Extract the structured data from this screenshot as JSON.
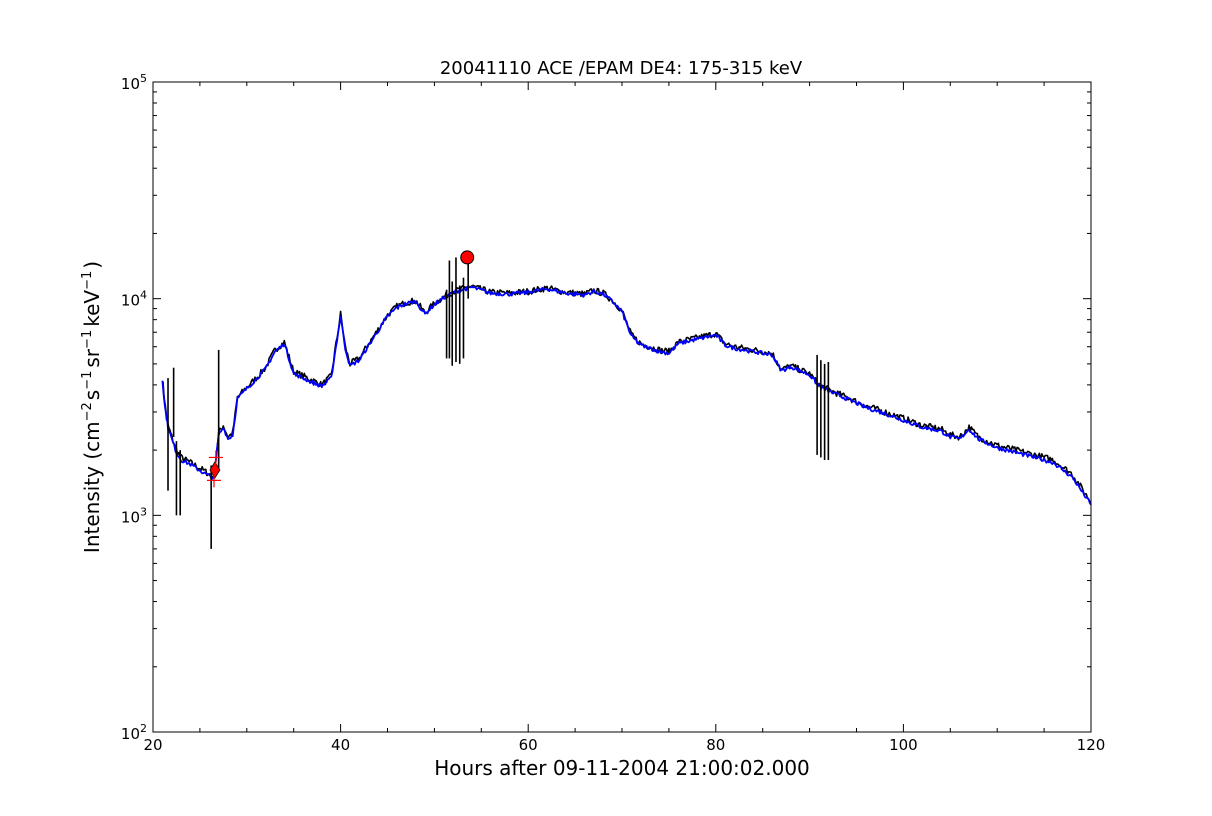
{
  "chart_data": {
    "type": "line",
    "title": "20041110 ACE /EPAM DE4: 175-315 keV",
    "xlabel": "Hours after 09-11-2004 21:00:02.000",
    "ylabel": {
      "prefix": "Intensity (cm",
      "sup1": "−2",
      "mid1": "s",
      "sup2": "−1",
      "mid2": "sr",
      "sup3": "−1",
      "mid3": "keV",
      "sup4": "−1",
      "suffix": ")"
    },
    "xlim": [
      21,
      120
    ],
    "ylim": [
      100,
      100000
    ],
    "yscale": "log",
    "x_ticks": [
      20,
      40,
      60,
      80,
      100,
      120
    ],
    "x_tick_labels": [
      "20",
      "40",
      "60",
      "80",
      "100",
      "120"
    ],
    "y_ticks": [
      {
        "value": 100,
        "base": "10",
        "exp": "2"
      },
      {
        "value": 1000,
        "base": "10",
        "exp": "3"
      },
      {
        "value": 10000,
        "base": "10",
        "exp": "4"
      },
      {
        "value": 100000,
        "base": "10",
        "exp": "5"
      }
    ],
    "grid": false,
    "series": [
      {
        "color": "#000000",
        "x": [
          21.0,
          21.3,
          21.6,
          22.0,
          22.5,
          23.0,
          23.5,
          24.0,
          24.5,
          25.0,
          25.5,
          26.0,
          26.5,
          27.0,
          27.5,
          28.0,
          28.5,
          29.0,
          30.0,
          31.0,
          32.0,
          33.0,
          34.0,
          35.0,
          36.0,
          37.0,
          38.0,
          39.0,
          40.0,
          40.5,
          41.0,
          42.0,
          43.0,
          44.0,
          45.0,
          46.0,
          47.0,
          48.0,
          49.0,
          50.0,
          51.0,
          52.0,
          53.0,
          54.0,
          56.0,
          58.0,
          60.0,
          62.0,
          64.0,
          66.0,
          67.0,
          68.0,
          69.0,
          70.0,
          71.0,
          72.0,
          74.0,
          75.0,
          76.0,
          78.0,
          80.0,
          81.0,
          82.0,
          84.0,
          86.0,
          87.0,
          88.0,
          90.0,
          91.0,
          92.0,
          94.0,
          96.0,
          98.0,
          100.0,
          102.0,
          104.0,
          105.0,
          106.0,
          107.0,
          108.0,
          110.0,
          112.0,
          114.0,
          116.0,
          118.0,
          120.0
        ],
        "y": [
          4300,
          3200,
          2600,
          2300,
          2000,
          1850,
          1800,
          1750,
          1700,
          1650,
          1600,
          1550,
          1500,
          2400,
          2600,
          2300,
          2400,
          3500,
          3900,
          4300,
          4800,
          5800,
          6300,
          4600,
          4400,
          4200,
          4000,
          4400,
          8500,
          6000,
          5000,
          5300,
          6200,
          7200,
          8400,
          9200,
          9600,
          9800,
          8600,
          9500,
          10200,
          10800,
          11100,
          11400,
          10700,
          10600,
          10800,
          11200,
          10700,
          10500,
          10900,
          10600,
          9800,
          8800,
          6800,
          6200,
          5800,
          5700,
          6300,
          6600,
          6900,
          6200,
          6000,
          5800,
          5600,
          4700,
          4900,
          4500,
          4000,
          3800,
          3500,
          3200,
          3000,
          2800,
          2600,
          2500,
          2350,
          2300,
          2550,
          2300,
          2100,
          2000,
          1900,
          1800,
          1550,
          1150
        ]
      },
      {
        "color": "#0000ff",
        "x": [
          21.0,
          21.3,
          21.6,
          22.0,
          22.5,
          23.0,
          23.5,
          24.0,
          24.5,
          25.0,
          25.5,
          26.0,
          26.5,
          27.0,
          27.5,
          28.0,
          28.5,
          29.0,
          30.0,
          31.0,
          32.0,
          33.0,
          34.0,
          35.0,
          36.0,
          37.0,
          38.0,
          39.0,
          40.0,
          40.5,
          41.0,
          42.0,
          43.0,
          44.0,
          45.0,
          46.0,
          47.0,
          48.0,
          49.0,
          50.0,
          51.0,
          52.0,
          53.0,
          54.0,
          56.0,
          58.0,
          60.0,
          62.0,
          64.0,
          66.0,
          67.0,
          68.0,
          69.0,
          70.0,
          71.0,
          72.0,
          74.0,
          75.0,
          76.0,
          78.0,
          80.0,
          81.0,
          82.0,
          84.0,
          86.0,
          87.0,
          88.0,
          90.0,
          91.0,
          92.0,
          94.0,
          96.0,
          98.0,
          100.0,
          102.0,
          104.0,
          105.0,
          106.0,
          107.0,
          108.0,
          110.0,
          112.0,
          114.0,
          116.0,
          118.0,
          120.0
        ],
        "y": [
          4200,
          3100,
          2550,
          2250,
          1950,
          1800,
          1760,
          1720,
          1660,
          1610,
          1560,
          1520,
          1480,
          2350,
          2550,
          2250,
          2350,
          3450,
          3850,
          4250,
          4750,
          5700,
          6200,
          4500,
          4300,
          4100,
          3950,
          4300,
          8300,
          5900,
          4900,
          5200,
          6100,
          7100,
          8300,
          9100,
          9500,
          9700,
          8500,
          9400,
          10100,
          10700,
          11000,
          11300,
          10600,
          10500,
          10700,
          11100,
          10600,
          10400,
          10800,
          10500,
          9700,
          8700,
          6700,
          6100,
          5700,
          5600,
          6200,
          6500,
          6800,
          6100,
          5900,
          5700,
          5500,
          4650,
          4850,
          4450,
          3950,
          3750,
          3450,
          3150,
          2950,
          2750,
          2550,
          2450,
          2300,
          2250,
          2500,
          2250,
          2050,
          1950,
          1850,
          1750,
          1500,
          1120
        ]
      }
    ],
    "spikes": [
      {
        "x": 21.6,
        "ymin": 1300,
        "ymax": 4300
      },
      {
        "x": 22.2,
        "ymin": 2300,
        "ymax": 4800
      },
      {
        "x": 22.5,
        "ymin": 1000,
        "ymax": 2200
      },
      {
        "x": 22.9,
        "ymin": 1000,
        "ymax": 2000
      },
      {
        "x": 26.2,
        "ymin": 700,
        "ymax": 1700
      },
      {
        "x": 27.0,
        "ymin": 1600,
        "ymax": 5800
      },
      {
        "x": 51.3,
        "ymin": 5300,
        "ymax": 11000
      },
      {
        "x": 51.6,
        "ymin": 5300,
        "ymax": 15000
      },
      {
        "x": 51.9,
        "ymin": 4900,
        "ymax": 12000
      },
      {
        "x": 52.3,
        "ymin": 5100,
        "ymax": 15500
      },
      {
        "x": 52.7,
        "ymin": 5000,
        "ymax": 11500
      },
      {
        "x": 53.1,
        "ymin": 5300,
        "ymax": 12500
      },
      {
        "x": 53.6,
        "ymin": 10000,
        "ymax": 14500
      },
      {
        "x": 90.8,
        "ymin": 1900,
        "ymax": 5500
      },
      {
        "x": 91.2,
        "ymin": 1850,
        "ymax": 5200
      },
      {
        "x": 91.6,
        "ymin": 1800,
        "ymax": 5000
      },
      {
        "x": 92.0,
        "ymin": 1800,
        "ymax": 5100
      }
    ],
    "markers": [
      {
        "shape": "circle",
        "x": 53.5,
        "y": 15500,
        "color": "#ff0000"
      },
      {
        "shape": "diamond",
        "x": 26.6,
        "y": 1620,
        "color": "#ff0000"
      },
      {
        "shape": "plus",
        "x": 26.7,
        "y": 1850,
        "color": "#ff0000"
      },
      {
        "shape": "plus",
        "x": 26.5,
        "y": 1450,
        "color": "#ff0000"
      }
    ]
  }
}
